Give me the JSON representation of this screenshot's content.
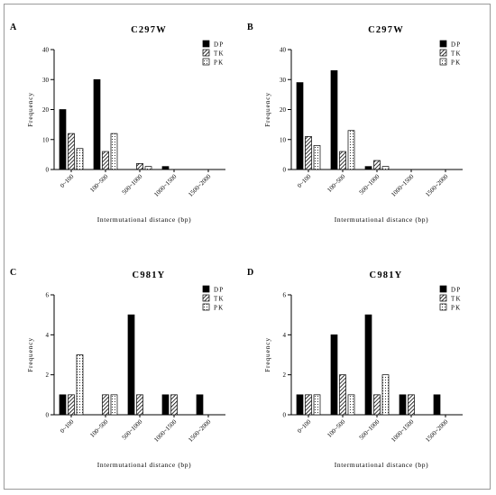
{
  "legend_labels": [
    "DP",
    "TK",
    "PK"
  ],
  "chart_data": [
    {
      "type": "bar",
      "panel_letter": "A",
      "title": "C297W",
      "xlabel": "Intermutational distance (bp)",
      "ylabel": "Frequency",
      "categories": [
        "0~100",
        "100~500",
        "500~1000",
        "1000~1500",
        "1500~2000"
      ],
      "ylim": [
        0,
        40
      ],
      "yticks": [
        0,
        10,
        20,
        30,
        40
      ],
      "legend_position": "top-right",
      "series": [
        {
          "name": "DP",
          "values": [
            20,
            30,
            0,
            1,
            0
          ]
        },
        {
          "name": "TK",
          "values": [
            12,
            6,
            2,
            0,
            0
          ]
        },
        {
          "name": "PK",
          "values": [
            7,
            12,
            1,
            0,
            0
          ]
        }
      ]
    },
    {
      "type": "bar",
      "panel_letter": "B",
      "title": "C297W",
      "xlabel": "Intermutational distance (bp)",
      "ylabel": "Frequency",
      "categories": [
        "0~100",
        "100~500",
        "500~1000",
        "1000~1500",
        "1500~2000"
      ],
      "ylim": [
        0,
        40
      ],
      "yticks": [
        0,
        10,
        20,
        30,
        40
      ],
      "legend_position": "top-right",
      "series": [
        {
          "name": "DP",
          "values": [
            29,
            33,
            1,
            0,
            0
          ]
        },
        {
          "name": "TK",
          "values": [
            11,
            6,
            3,
            0,
            0
          ]
        },
        {
          "name": "PK",
          "values": [
            8,
            13,
            1,
            0,
            0
          ]
        }
      ]
    },
    {
      "type": "bar",
      "panel_letter": "C",
      "title": "C981Y",
      "xlabel": "Intermutational distance (bp)",
      "ylabel": "Frequency",
      "categories": [
        "0~100",
        "100~500",
        "500~1000",
        "1000~1500",
        "1500~2000"
      ],
      "ylim": [
        0,
        6
      ],
      "yticks": [
        0,
        2,
        4,
        6
      ],
      "legend_position": "top-right",
      "series": [
        {
          "name": "DP",
          "values": [
            1,
            0,
            5,
            1,
            1
          ]
        },
        {
          "name": "TK",
          "values": [
            1,
            1,
            1,
            1,
            0
          ]
        },
        {
          "name": "PK",
          "values": [
            3,
            1,
            0,
            0,
            0
          ]
        }
      ]
    },
    {
      "type": "bar",
      "panel_letter": "D",
      "title": "C981Y",
      "xlabel": "Intermutational distance (bp)",
      "ylabel": "Frequency",
      "categories": [
        "0~100",
        "100~500",
        "500~1000",
        "1000~1500",
        "1500~2000"
      ],
      "ylim": [
        0,
        6
      ],
      "yticks": [
        0,
        2,
        4,
        6
      ],
      "legend_position": "top-right",
      "series": [
        {
          "name": "DP",
          "values": [
            1,
            4,
            5,
            1,
            1
          ]
        },
        {
          "name": "TK",
          "values": [
            1,
            2,
            1,
            1,
            0
          ]
        },
        {
          "name": "PK",
          "values": [
            1,
            1,
            2,
            0,
            0
          ]
        }
      ]
    }
  ]
}
